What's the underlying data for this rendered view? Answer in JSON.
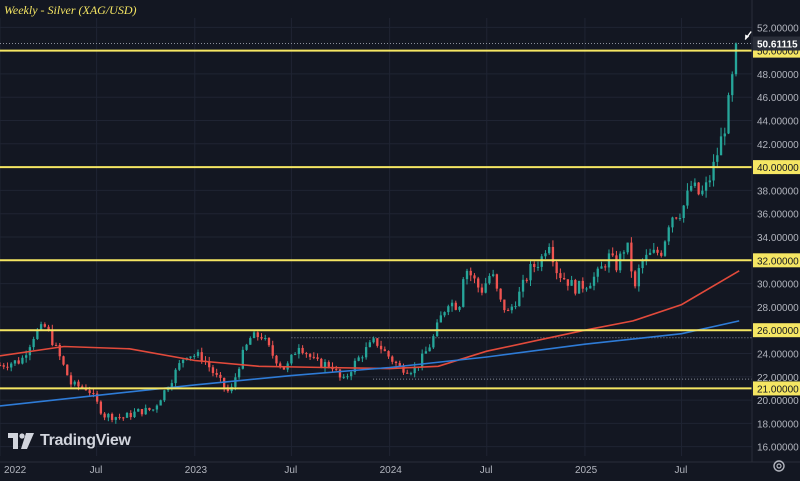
{
  "chart_data": {
    "type": "candlestick",
    "title": "Weekly - Silver (XAG/USD)",
    "timeframe": "Weekly",
    "instrument": "Silver (XAG/USD)",
    "ylim": [
      15.2,
      52.8
    ],
    "yticks": [
      16,
      18,
      20,
      22,
      24,
      26,
      28,
      30,
      32,
      34,
      36,
      38,
      40,
      42,
      44,
      46,
      48,
      50,
      52
    ],
    "ytick_labels": [
      "16.00000",
      "18.00000",
      "20.00000",
      "22.00000",
      "24.00000",
      "26.00000",
      "28.00000",
      "30.00000",
      "32.00000",
      "34.00000",
      "36.00000",
      "38.00000",
      "40.00000",
      "42.00000",
      "44.00000",
      "46.00000",
      "48.00000",
      "50.00000",
      "52.00000"
    ],
    "xticks": [
      {
        "date": "2022-01-01",
        "label": "2022"
      },
      {
        "date": "2022-07-01",
        "label": "Jul"
      },
      {
        "date": "2023-01-01",
        "label": "2023"
      },
      {
        "date": "2023-07-01",
        "label": "Jul"
      },
      {
        "date": "2024-01-01",
        "label": "2024"
      },
      {
        "date": "2024-07-01",
        "label": "Jul"
      },
      {
        "date": "2025-01-01",
        "label": "2025"
      },
      {
        "date": "2025-07-01",
        "label": "Jul"
      }
    ],
    "xlim": [
      "2022-01-01",
      "2025-11-10"
    ],
    "last_price": 50.61115,
    "last_price_label": "50.61115",
    "horizontal_levels": [
      {
        "value": 50,
        "label": "50.00000"
      },
      {
        "value": 40,
        "label": "40.00000"
      },
      {
        "value": 32,
        "label": "32.00000"
      },
      {
        "value": 26,
        "label": "26.00000"
      },
      {
        "value": 21,
        "label": "21.00000"
      }
    ],
    "close_path": [
      [
        "2022-01-01",
        23.0
      ],
      [
        "2022-02-10",
        23.4
      ],
      [
        "2022-03-08",
        25.8
      ],
      [
        "2022-03-28",
        26.3
      ],
      [
        "2022-04-20",
        24.0
      ],
      [
        "2022-05-15",
        21.3
      ],
      [
        "2022-06-15",
        21.0
      ],
      [
        "2022-07-15",
        18.7
      ],
      [
        "2022-08-20",
        18.5
      ],
      [
        "2022-09-15",
        19.0
      ],
      [
        "2022-10-15",
        19.2
      ],
      [
        "2022-11-15",
        21.5
      ],
      [
        "2022-12-15",
        24.0
      ],
      [
        "2023-01-15",
        23.7
      ],
      [
        "2023-02-10",
        22.0
      ],
      [
        "2023-03-08",
        20.5
      ],
      [
        "2023-03-28",
        23.5
      ],
      [
        "2023-04-15",
        25.3
      ],
      [
        "2023-05-05",
        25.6
      ],
      [
        "2023-05-28",
        23.8
      ],
      [
        "2023-06-20",
        22.6
      ],
      [
        "2023-07-15",
        24.8
      ],
      [
        "2023-08-15",
        23.2
      ],
      [
        "2023-09-15",
        23.0
      ],
      [
        "2023-10-05",
        21.5
      ],
      [
        "2023-10-25",
        23.0
      ],
      [
        "2023-11-15",
        24.2
      ],
      [
        "2023-12-05",
        25.1
      ],
      [
        "2023-12-25",
        24.0
      ],
      [
        "2024-01-20",
        22.8
      ],
      [
        "2024-02-15",
        22.6
      ],
      [
        "2024-03-01",
        23.5
      ],
      [
        "2024-03-20",
        25.0
      ],
      [
        "2024-04-05",
        27.0
      ],
      [
        "2024-04-20",
        28.5
      ],
      [
        "2024-05-10",
        28.0
      ],
      [
        "2024-05-20",
        31.5
      ],
      [
        "2024-06-05",
        30.5
      ],
      [
        "2024-06-20",
        29.3
      ],
      [
        "2024-07-10",
        31.0
      ],
      [
        "2024-07-25",
        28.5
      ],
      [
        "2024-08-10",
        27.5
      ],
      [
        "2024-08-30",
        29.0
      ],
      [
        "2024-09-20",
        31.2
      ],
      [
        "2024-10-10",
        32.0
      ],
      [
        "2024-10-25",
        33.8
      ],
      [
        "2024-11-10",
        31.0
      ],
      [
        "2024-11-25",
        30.4
      ],
      [
        "2024-12-15",
        29.6
      ],
      [
        "2025-01-05",
        30.0
      ],
      [
        "2025-01-25",
        30.8
      ],
      [
        "2025-02-15",
        32.3
      ],
      [
        "2025-03-01",
        31.5
      ],
      [
        "2025-03-20",
        33.5
      ],
      [
        "2025-04-05",
        29.5
      ],
      [
        "2025-04-15",
        31.8
      ],
      [
        "2025-05-05",
        32.5
      ],
      [
        "2025-05-25",
        32.8
      ],
      [
        "2025-06-10",
        35.8
      ],
      [
        "2025-07-01",
        36.2
      ],
      [
        "2025-07-20",
        38.5
      ],
      [
        "2025-08-05",
        37.5
      ],
      [
        "2025-08-20",
        38.6
      ],
      [
        "2025-09-05",
        41.0
      ],
      [
        "2025-09-20",
        43.5
      ],
      [
        "2025-10-01",
        46.5
      ],
      [
        "2025-10-10",
        49.5
      ],
      [
        "2025-10-17",
        50.61
      ]
    ],
    "moving_averages": [
      {
        "color": "#e24a3b",
        "points": [
          [
            "2022-01-01",
            23.8
          ],
          [
            "2022-05-01",
            24.6
          ],
          [
            "2022-09-01",
            24.4
          ],
          [
            "2023-01-01",
            23.4
          ],
          [
            "2023-05-01",
            22.9
          ],
          [
            "2023-09-01",
            22.8
          ],
          [
            "2024-01-01",
            22.7
          ],
          [
            "2024-04-01",
            22.9
          ],
          [
            "2024-07-01",
            24.2
          ],
          [
            "2024-10-01",
            25.1
          ],
          [
            "2025-01-01",
            26.0
          ],
          [
            "2025-04-01",
            26.8
          ],
          [
            "2025-07-01",
            28.2
          ],
          [
            "2025-10-17",
            31.1
          ]
        ]
      },
      {
        "color": "#2e7bd6",
        "points": [
          [
            "2022-01-01",
            19.5
          ],
          [
            "2022-07-01",
            20.4
          ],
          [
            "2023-01-01",
            21.3
          ],
          [
            "2023-07-01",
            22.1
          ],
          [
            "2024-01-01",
            22.8
          ],
          [
            "2024-07-01",
            23.7
          ],
          [
            "2025-01-01",
            24.8
          ],
          [
            "2025-07-01",
            25.7
          ],
          [
            "2025-10-17",
            26.8
          ]
        ]
      }
    ]
  },
  "branding": {
    "logo_text": "TradingView",
    "logo_icon": "tradingview-logo-icon"
  },
  "controls": {
    "settings_icon": "gear-icon"
  },
  "colors": {
    "background": "#131722",
    "bull": "#26a69a",
    "bear": "#ef5350",
    "level": "#f5e663",
    "axis_text": "#b2b5be"
  }
}
